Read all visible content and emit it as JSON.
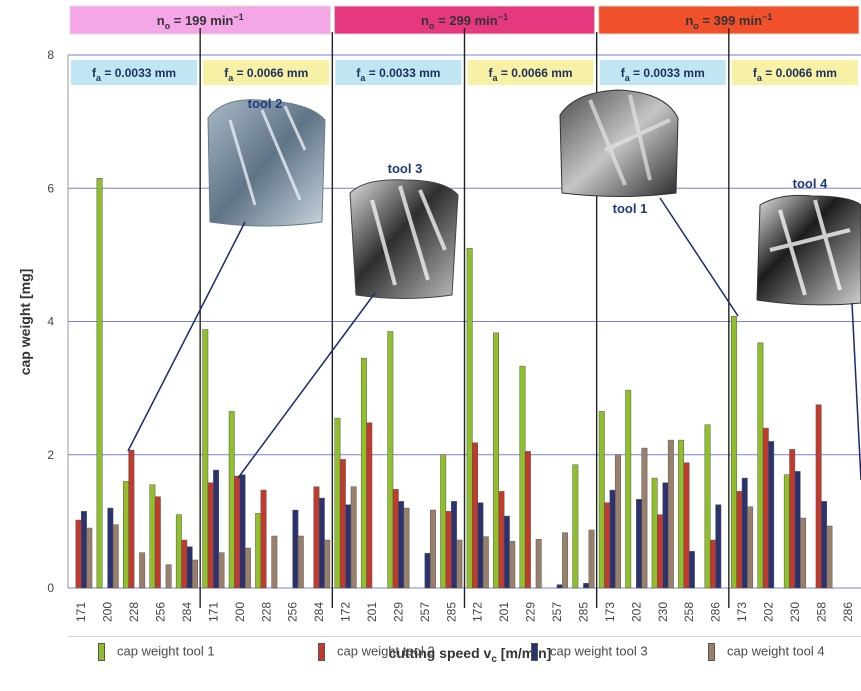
{
  "chart_data": {
    "type": "bar",
    "ylabel": "cap weight [mg]",
    "xlabel": "cutting speed v_c [m/min]",
    "xlabel_main": "cutting speed v",
    "xlabel_sub": "c",
    "xlabel_unit": " [m/min]",
    "ylim": [
      0,
      8
    ],
    "yticks": [
      "0",
      "2",
      "4",
      "6",
      "8"
    ],
    "grid": true,
    "legend_placement": "bottom",
    "categories": [
      "171",
      "200",
      "228",
      "256",
      "284",
      "171",
      "200",
      "228",
      "256",
      "284",
      "172",
      "201",
      "229",
      "257",
      "285",
      "172",
      "201",
      "229",
      "257",
      "285",
      "173",
      "202",
      "230",
      "258",
      "286",
      "173",
      "202",
      "230",
      "258",
      "286"
    ],
    "series": [
      {
        "name": "cap weight tool 1",
        "color": "#8fbf2a",
        "values": [
          0,
          6.15,
          1.6,
          1.55,
          1.1,
          3.88,
          2.65,
          1.12,
          0,
          0,
          2.55,
          3.45,
          3.85,
          0,
          2.0,
          5.1,
          3.83,
          3.33,
          0,
          1.85,
          2.65,
          2.97,
          1.65,
          2.22,
          2.45,
          4.08,
          3.68,
          1.7,
          0,
          0
        ]
      },
      {
        "name": "cap weight tool 2",
        "color": "#c23a2e",
        "values": [
          1.02,
          0,
          2.07,
          1.37,
          0.72,
          1.58,
          1.68,
          1.47,
          0,
          1.52,
          1.93,
          2.48,
          1.48,
          0,
          1.15,
          2.18,
          1.45,
          2.05,
          0,
          0,
          1.28,
          0,
          1.1,
          1.88,
          0.72,
          1.45,
          2.4,
          2.08,
          2.75,
          0
        ]
      },
      {
        "name": "cap weight tool 3",
        "color": "#2a3270",
        "values": [
          1.15,
          1.2,
          0,
          0,
          0.62,
          1.77,
          1.7,
          0,
          1.17,
          1.35,
          1.25,
          0,
          1.3,
          0.52,
          1.3,
          1.28,
          1.08,
          0,
          0.05,
          0.07,
          1.47,
          1.33,
          1.58,
          0.55,
          1.25,
          1.65,
          2.2,
          1.75,
          1.3,
          0
        ]
      },
      {
        "name": "cap weight tool 4",
        "color": "#9a806a",
        "values": [
          0.9,
          0.95,
          0.53,
          0.35,
          0.42,
          0.53,
          0.6,
          0.78,
          0.78,
          0.72,
          1.52,
          0,
          1.2,
          1.17,
          0.72,
          0.77,
          0.7,
          0.73,
          0.83,
          0.87,
          2.0,
          2.1,
          2.22,
          0,
          0,
          1.22,
          0,
          1.05,
          0.93,
          0
        ]
      }
    ],
    "groups": [
      {
        "label": "n",
        "sub": "o",
        "rest": " = 199 min",
        "sup": "−1",
        "color": "#f4a6e6"
      },
      {
        "label": "n",
        "sub": "o",
        "rest": " = 299 min",
        "sup": "−1",
        "color": "#e6387f"
      },
      {
        "label": "n",
        "sub": "o",
        "rest": " = 399 min",
        "sup": "−1",
        "color": "#f0502a"
      }
    ],
    "feeds": [
      {
        "label": "f",
        "sub": "a",
        "rest": " = 0.0033 mm",
        "color": "#bfe6f2"
      },
      {
        "label": "f",
        "sub": "a",
        "rest": " = 0.0066 mm",
        "color": "#f7f1a6"
      },
      {
        "label": "f",
        "sub": "a",
        "rest": " = 0.0033 mm",
        "color": "#bfe6f2"
      },
      {
        "label": "f",
        "sub": "a",
        "rest": " = 0.0066 mm",
        "color": "#f7f1a6"
      },
      {
        "label": "f",
        "sub": "a",
        "rest": " = 0.0033 mm",
        "color": "#bfe6f2"
      },
      {
        "label": "f",
        "sub": "a",
        "rest": " = 0.0066 mm",
        "color": "#f7f1a6"
      }
    ],
    "annotations": [
      {
        "text": "tool 2"
      },
      {
        "text": "tool 3"
      },
      {
        "text": "tool 1"
      },
      {
        "text": "tool 4"
      }
    ]
  },
  "colors": {
    "grid": "#7d7fdc",
    "plot_bg": "#ffffff",
    "axis_text": "#444444"
  }
}
